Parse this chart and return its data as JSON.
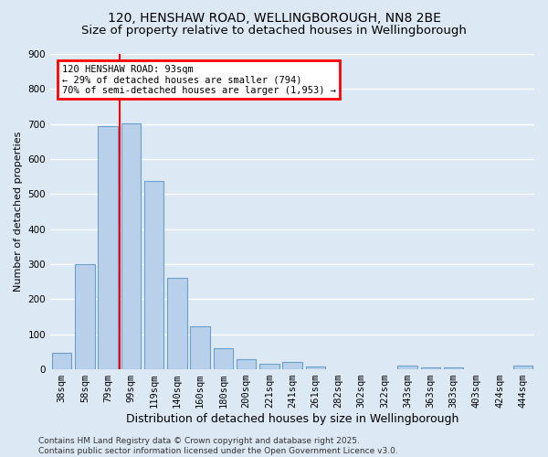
{
  "title1": "120, HENSHAW ROAD, WELLINGBOROUGH, NN8 2BE",
  "title2": "Size of property relative to detached houses in Wellingborough",
  "xlabel": "Distribution of detached houses by size in Wellingborough",
  "ylabel": "Number of detached properties",
  "categories": [
    "38sqm",
    "58sqm",
    "79sqm",
    "99sqm",
    "119sqm",
    "140sqm",
    "160sqm",
    "180sqm",
    "200sqm",
    "221sqm",
    "241sqm",
    "261sqm",
    "282sqm",
    "302sqm",
    "322sqm",
    "343sqm",
    "363sqm",
    "383sqm",
    "403sqm",
    "424sqm",
    "444sqm"
  ],
  "values": [
    47,
    300,
    693,
    703,
    537,
    260,
    122,
    60,
    28,
    15,
    20,
    8,
    0,
    0,
    0,
    10,
    5,
    5,
    0,
    0,
    10
  ],
  "bar_color": "#b8d0ea",
  "bar_edge_color": "#6aa0cc",
  "vline_pos": 2.5,
  "vline_color": "red",
  "annotation_text": "120 HENSHAW ROAD: 93sqm\n← 29% of detached houses are smaller (794)\n70% of semi-detached houses are larger (1,953) →",
  "annotation_box_color": "white",
  "annotation_box_edge_color": "red",
  "ylim": [
    0,
    900
  ],
  "yticks": [
    0,
    100,
    200,
    300,
    400,
    500,
    600,
    700,
    800,
    900
  ],
  "bg_color": "#dde8f5",
  "grid_color": "white",
  "footer_text": "Contains HM Land Registry data © Crown copyright and database right 2025.\nContains public sector information licensed under the Open Government Licence v3.0.",
  "title1_fontsize": 10,
  "title2_fontsize": 9.5,
  "xlabel_fontsize": 9,
  "ylabel_fontsize": 8,
  "tick_fontsize": 7.5,
  "annotation_fontsize": 7.5,
  "footer_fontsize": 6.5
}
